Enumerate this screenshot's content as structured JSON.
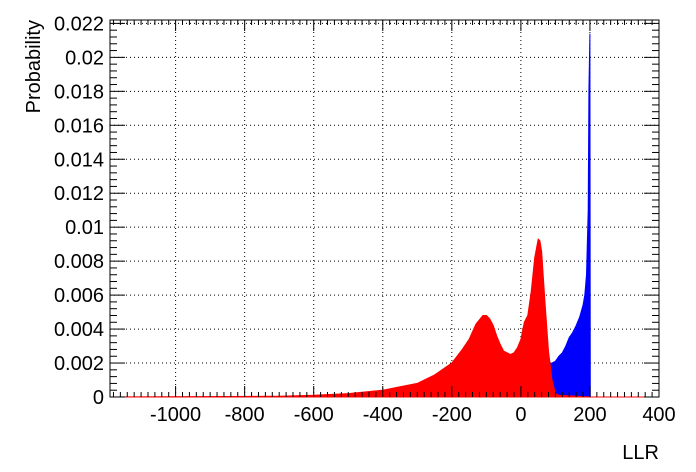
{
  "chart_data": {
    "type": "histogram",
    "xlabel": "LLR",
    "ylabel": "Probability",
    "xlim": [
      -1190,
      400
    ],
    "ylim": [
      0,
      0.0222
    ],
    "x_ticks": [
      -1000,
      -800,
      -600,
      -400,
      -200,
      0,
      200,
      400
    ],
    "y_ticks": [
      0,
      0.002,
      0.004,
      0.006,
      0.008,
      0.01,
      0.012,
      0.014,
      0.016,
      0.018,
      0.02,
      0.022
    ],
    "x_tick_labels": [
      "-1000",
      "-800",
      "-600",
      "-400",
      "-200",
      "0",
      "200",
      "400"
    ],
    "y_tick_labels": [
      "0",
      "0.002",
      "0.004",
      "0.006",
      "0.008",
      "0.01",
      "0.012",
      "0.014",
      "0.016",
      "0.018",
      "0.02",
      "0.022"
    ],
    "grid": true,
    "series": [
      {
        "color": "#0000ff",
        "points": [
          [
            -20,
            0.0
          ],
          [
            0,
            0.0015
          ],
          [
            20,
            0.0016
          ],
          [
            40,
            0.0017
          ],
          [
            60,
            0.0018
          ],
          [
            80,
            0.0019
          ],
          [
            100,
            0.0021
          ],
          [
            110,
            0.0024
          ],
          [
            120,
            0.0026
          ],
          [
            130,
            0.003
          ],
          [
            140,
            0.0035
          ],
          [
            150,
            0.0038
          ],
          [
            160,
            0.0042
          ],
          [
            170,
            0.0047
          ],
          [
            180,
            0.0054
          ],
          [
            185,
            0.006
          ],
          [
            190,
            0.0072
          ],
          [
            195,
            0.011
          ],
          [
            197,
            0.018
          ],
          [
            200,
            0.0214
          ],
          [
            201,
            0.0
          ]
        ]
      },
      {
        "color": "#ff0000",
        "points": [
          [
            -1190,
            0.0
          ],
          [
            -700,
            5e-05
          ],
          [
            -600,
            0.0001
          ],
          [
            -500,
            0.0002
          ],
          [
            -400,
            0.0004
          ],
          [
            -350,
            0.0006
          ],
          [
            -300,
            0.0008
          ],
          [
            -250,
            0.0013
          ],
          [
            -200,
            0.002
          ],
          [
            -170,
            0.0028
          ],
          [
            -150,
            0.0034
          ],
          [
            -130,
            0.0043
          ],
          [
            -110,
            0.0048
          ],
          [
            -100,
            0.0048
          ],
          [
            -90,
            0.0046
          ],
          [
            -80,
            0.0042
          ],
          [
            -70,
            0.0036
          ],
          [
            -60,
            0.0031
          ],
          [
            -50,
            0.0027
          ],
          [
            -40,
            0.0026
          ],
          [
            -30,
            0.0025
          ],
          [
            -20,
            0.0026
          ],
          [
            -10,
            0.0029
          ],
          [
            0,
            0.0034
          ],
          [
            10,
            0.0044
          ],
          [
            20,
            0.0048
          ],
          [
            30,
            0.0062
          ],
          [
            40,
            0.0082
          ],
          [
            50,
            0.0093
          ],
          [
            55,
            0.0092
          ],
          [
            60,
            0.0086
          ],
          [
            70,
            0.0055
          ],
          [
            80,
            0.0027
          ],
          [
            90,
            0.001
          ],
          [
            100,
            0.0002
          ],
          [
            110,
            0.0001
          ],
          [
            200,
            0.0
          ],
          [
            400,
            0.0
          ]
        ]
      }
    ]
  }
}
